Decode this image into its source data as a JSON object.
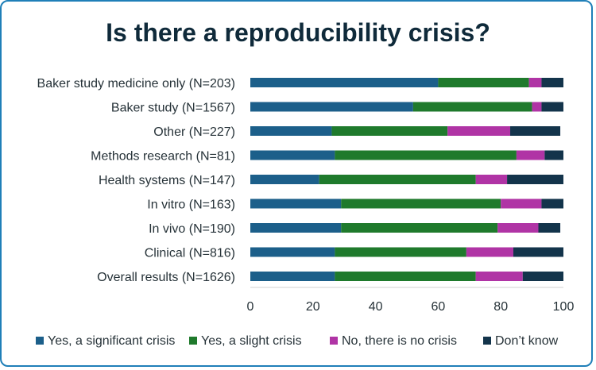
{
  "chart_data": {
    "type": "bar",
    "orientation": "horizontal",
    "stacked": true,
    "title": "Is there a reproducibility crisis?",
    "xlabel": "",
    "ylabel": "",
    "xlim": [
      0,
      100
    ],
    "xticks": [
      0,
      20,
      40,
      60,
      80,
      100
    ],
    "grid": false,
    "legend_position": "bottom",
    "categories": [
      "Baker study medicine only (N=203)",
      "Baker study (N=1567)",
      "Other (N=227)",
      "Methods research (N=81)",
      "Health systems (N=147)",
      "In vitro (N=163)",
      "In vivo (N=190)",
      "Clinical (N=816)",
      "Overall results (N=1626)"
    ],
    "series": [
      {
        "name": "Yes, a significant crisis",
        "color": "#1c5f8a",
        "values": [
          60,
          52,
          26,
          27,
          22,
          29,
          29,
          27,
          27
        ]
      },
      {
        "name": "Yes, a slight crisis",
        "color": "#1f7a2c",
        "values": [
          29,
          38,
          37,
          58,
          50,
          51,
          50,
          42,
          45
        ]
      },
      {
        "name": "No, there is no crisis",
        "color": "#b034a5",
        "values": [
          4,
          3,
          20,
          9,
          10,
          13,
          13,
          15,
          15
        ]
      },
      {
        "name": "Don’t know",
        "color": "#13344b",
        "values": [
          7,
          7,
          16,
          6,
          18,
          7,
          7,
          16,
          13
        ]
      }
    ]
  }
}
